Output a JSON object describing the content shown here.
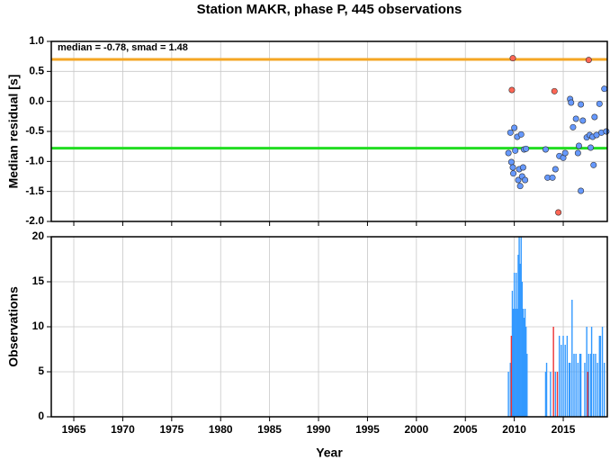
{
  "chart_data": [
    {
      "type": "scatter",
      "title": "Station MAKR, phase P, 445 observations",
      "ylabel": "Median residual [s]",
      "annotation": "median = -0.78, smad = 1.48",
      "xlim": [
        1962.7,
        2019.5
      ],
      "xticks": [
        1965,
        1970,
        1975,
        1980,
        1985,
        1990,
        1995,
        2000,
        2005,
        2010,
        2015
      ],
      "ylim": [
        -2,
        1
      ],
      "yticks": [
        {
          "value": -2,
          "label": "-2.0"
        },
        {
          "value": -1.5,
          "label": "-1.5"
        },
        {
          "value": -1,
          "label": "-1.0"
        },
        {
          "value": -0.5,
          "label": "-0.5"
        },
        {
          "value": 0,
          "label": "0.0"
        },
        {
          "value": 0.5,
          "label": "0.5"
        },
        {
          "value": 1,
          "label": "1.0"
        }
      ],
      "grid": true,
      "hlines": [
        {
          "value": 0.7,
          "color": "#f5a623"
        },
        {
          "value": -0.78,
          "color": "#22dd22"
        }
      ],
      "series": [
        {
          "color": "#6699ff",
          "x": [
            2009.4,
            2009.6,
            2009.7,
            2009.85,
            2010.0,
            2009.9,
            2010.1,
            2010.3,
            2010.4,
            2010.5,
            2010.6,
            2010.7,
            2010.8,
            2010.9,
            2011.0,
            2011.1,
            2011.2,
            2013.2,
            2013.4,
            2013.9,
            2014.2,
            2014.6,
            2015.0,
            2015.2,
            2015.7,
            2015.8,
            2016.0,
            2016.3,
            2016.5,
            2016.6,
            2016.8,
            2016.8,
            2017.0,
            2017.4,
            2017.7,
            2017.8,
            2018.0,
            2018.1,
            2018.2,
            2018.4,
            2018.7,
            2018.9,
            2019.2,
            2019.4
          ],
          "values": [
            -0.86,
            -0.52,
            -1.01,
            -1.1,
            -0.44,
            -1.2,
            -0.82,
            -0.59,
            -1.31,
            -1.13,
            -1.41,
            -0.55,
            -1.25,
            -1.1,
            -0.8,
            -1.31,
            -0.79,
            -0.8,
            -1.27,
            -1.27,
            -1.13,
            -0.91,
            -0.94,
            -0.86,
            0.04,
            -0.02,
            -0.43,
            -0.29,
            -0.86,
            -0.74,
            -1.49,
            -0.05,
            -0.32,
            -0.6,
            -0.56,
            -0.77,
            -0.59,
            -1.06,
            -0.26,
            -0.56,
            -0.04,
            -0.52,
            0.21,
            -0.5
          ]
        },
        {
          "color": "#ff6655",
          "x": [
            2009.85,
            2009.75,
            2014.1,
            2017.6,
            2014.5
          ],
          "values": [
            0.72,
            0.19,
            0.17,
            0.69,
            -1.85
          ]
        }
      ]
    },
    {
      "type": "bar",
      "xlabel": "Year",
      "ylabel": "Observations",
      "xlim": [
        1962.7,
        2019.5
      ],
      "xticks": [
        1965,
        1970,
        1975,
        1980,
        1985,
        1990,
        1995,
        2000,
        2005,
        2010,
        2015
      ],
      "ylim": [
        0,
        20
      ],
      "yticks": [
        0,
        5,
        10,
        15,
        20
      ],
      "grid": true,
      "series": [
        {
          "color": "#3399ff",
          "x": [
            2009.4,
            2009.6,
            2009.8,
            2009.9,
            2010.0,
            2010.1,
            2010.2,
            2010.3,
            2010.4,
            2010.5,
            2010.6,
            2010.7,
            2010.8,
            2010.9,
            2011.0,
            2011.1,
            2011.2,
            2011.3,
            2013.2,
            2013.3,
            2013.7,
            2014.2,
            2014.6,
            2014.8,
            2015.0,
            2015.2,
            2015.4,
            2015.6,
            2015.7,
            2015.9,
            2016.1,
            2016.3,
            2016.5,
            2016.7,
            2016.8,
            2017.2,
            2017.4,
            2017.6,
            2017.8,
            2017.9,
            2018.1,
            2018.3,
            2018.5,
            2018.7,
            2018.8,
            2019.0,
            2019.2
          ],
          "values": [
            5,
            6,
            14,
            12,
            16,
            12,
            16,
            12,
            18,
            20,
            17,
            20,
            15,
            12,
            11,
            12,
            10,
            7,
            5,
            6,
            5,
            5,
            9,
            8,
            9,
            8,
            9,
            6,
            6,
            13,
            7,
            7,
            6,
            7,
            7,
            6,
            10,
            7,
            7,
            10,
            7,
            7,
            6,
            9,
            9,
            10,
            6
          ]
        },
        {
          "color": "#ee3333",
          "x": [
            2009.7,
            2014.0,
            2014.4,
            2017.5
          ],
          "values": [
            9,
            10,
            5,
            5
          ]
        }
      ]
    }
  ]
}
